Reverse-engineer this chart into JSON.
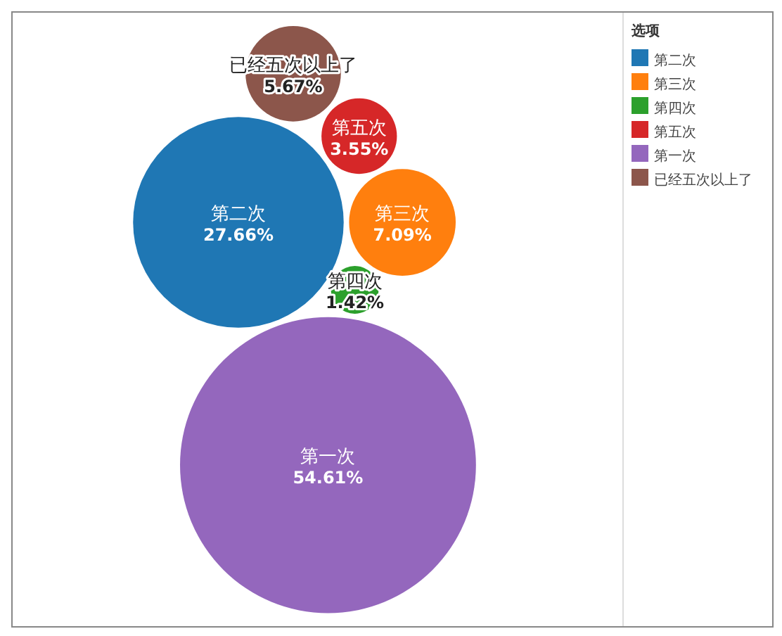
{
  "chart_data": {
    "type": "other",
    "legend_title": "选项",
    "categories": [
      "第二次",
      "第三次",
      "第四次",
      "第五次",
      "第一次",
      "已经五次以上了"
    ],
    "values": [
      27.66,
      7.09,
      1.42,
      3.55,
      54.61,
      5.67
    ],
    "value_labels": [
      "27.66%",
      "7.09%",
      "1.42%",
      "3.55%",
      "54.61%",
      "5.67%"
    ],
    "colors": [
      "#1f77b4",
      "#ff7f0e",
      "#2ca02c",
      "#d62728",
      "#9467bd",
      "#8c564b"
    ]
  }
}
